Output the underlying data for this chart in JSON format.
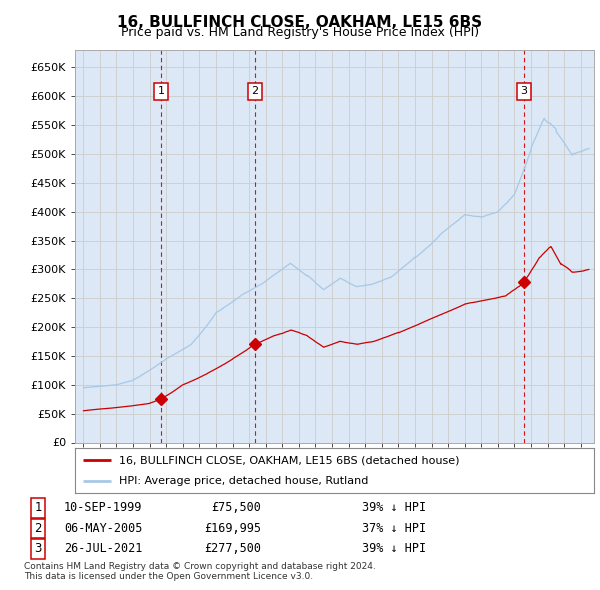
{
  "title": "16, BULLFINCH CLOSE, OAKHAM, LE15 6BS",
  "subtitle": "Price paid vs. HM Land Registry's House Price Index (HPI)",
  "ylim": [
    0,
    680000
  ],
  "yticks": [
    0,
    50000,
    100000,
    150000,
    200000,
    250000,
    300000,
    350000,
    400000,
    450000,
    500000,
    550000,
    600000,
    650000
  ],
  "ytick_labels": [
    "£0",
    "£50K",
    "£100K",
    "£150K",
    "£200K",
    "£250K",
    "£300K",
    "£350K",
    "£400K",
    "£450K",
    "£500K",
    "£550K",
    "£600K",
    "£650K"
  ],
  "hpi_color": "#a8c8e8",
  "price_color": "#cc0000",
  "vline_color": "#cc0000",
  "grid_color": "#cccccc",
  "bg_color": "#ffffff",
  "plot_bg_color": "#dce8f5",
  "purchases": [
    {
      "label": "1",
      "date_num": 1999.69,
      "price": 75500
    },
    {
      "label": "2",
      "date_num": 2005.34,
      "price": 169995
    },
    {
      "label": "3",
      "date_num": 2021.56,
      "price": 277500
    }
  ],
  "purchase_dates_str": [
    "10-SEP-1999",
    "06-MAY-2005",
    "26-JUL-2021"
  ],
  "purchase_prices_str": [
    "£75,500",
    "£169,995",
    "£277,500"
  ],
  "purchase_hpi_str": [
    "39% ↓ HPI",
    "37% ↓ HPI",
    "39% ↓ HPI"
  ],
  "legend_line1": "16, BULLFINCH CLOSE, OAKHAM, LE15 6BS (detached house)",
  "legend_line2": "HPI: Average price, detached house, Rutland",
  "footer": "Contains HM Land Registry data © Crown copyright and database right 2024.\nThis data is licensed under the Open Government Licence v3.0.",
  "xlim_start": 1994.5,
  "xlim_end": 2025.8
}
